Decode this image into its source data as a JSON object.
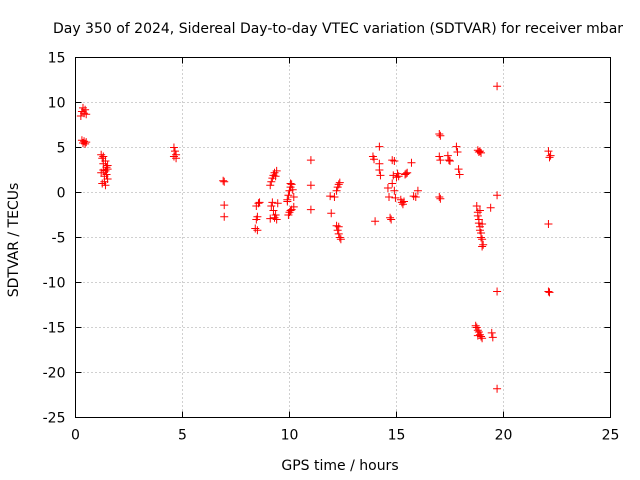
{
  "chart_data": {
    "type": "scatter",
    "title": "Day 350 of 2024, Sidereal Day-to-day VTEC variation (SDTVAR) for receiver mbar",
    "xlabel": "GPS time / hours",
    "ylabel": "SDTVAR / TECUs",
    "xlim": [
      0,
      25
    ],
    "ylim": [
      -25,
      15
    ],
    "xticks": [
      "0",
      "5",
      "10",
      "15",
      "20",
      "25"
    ],
    "yticks": [
      "15",
      "10",
      "5",
      "0",
      "-5",
      "-10",
      "-15",
      "-20",
      "-25"
    ],
    "grid": true,
    "marker": "+",
    "color": "#ff0000",
    "points": [
      [
        0.25,
        8.5
      ],
      [
        0.3,
        9.0
      ],
      [
        0.35,
        9.4
      ],
      [
        0.4,
        8.8
      ],
      [
        0.45,
        9.2
      ],
      [
        0.5,
        8.7
      ],
      [
        0.3,
        5.8
      ],
      [
        0.35,
        5.5
      ],
      [
        0.4,
        5.7
      ],
      [
        0.45,
        5.4
      ],
      [
        0.5,
        5.6
      ],
      [
        1.2,
        4.2
      ],
      [
        1.25,
        3.8
      ],
      [
        1.3,
        3.2
      ],
      [
        1.3,
        2.5
      ],
      [
        1.35,
        1.8
      ],
      [
        1.35,
        1.2
      ],
      [
        1.4,
        0.8
      ],
      [
        1.4,
        3.5
      ],
      [
        1.45,
        2.8
      ],
      [
        1.45,
        2.0
      ],
      [
        1.5,
        3.0
      ],
      [
        1.5,
        1.5
      ],
      [
        1.2,
        2.2
      ],
      [
        1.25,
        1.0
      ],
      [
        1.3,
        4.0
      ],
      [
        1.4,
        2.4
      ],
      [
        1.5,
        2.6
      ],
      [
        4.6,
        5.0
      ],
      [
        4.65,
        4.6
      ],
      [
        4.6,
        4.0
      ],
      [
        4.7,
        3.8
      ],
      [
        4.7,
        4.2
      ],
      [
        6.9,
        1.3
      ],
      [
        6.95,
        1.2
      ],
      [
        6.95,
        -1.4
      ],
      [
        6.95,
        -2.7
      ],
      [
        8.4,
        -4.0
      ],
      [
        8.45,
        -3.0
      ],
      [
        8.5,
        -2.7
      ],
      [
        8.55,
        -1.2
      ],
      [
        8.45,
        -1.5
      ],
      [
        8.5,
        -4.2
      ],
      [
        8.6,
        -1.1
      ],
      [
        9.1,
        0.8
      ],
      [
        9.15,
        1.2
      ],
      [
        9.2,
        1.6
      ],
      [
        9.25,
        1.9
      ],
      [
        9.3,
        2.2
      ],
      [
        9.35,
        1.8
      ],
      [
        9.4,
        2.4
      ],
      [
        9.15,
        -1.5
      ],
      [
        9.2,
        -1.1
      ],
      [
        9.25,
        -2.0
      ],
      [
        9.3,
        -2.8
      ],
      [
        9.35,
        -2.5
      ],
      [
        9.4,
        -3.0
      ],
      [
        9.45,
        -1.2
      ],
      [
        9.1,
        -2.9
      ],
      [
        9.9,
        -0.8
      ],
      [
        9.95,
        -0.3
      ],
      [
        10.0,
        0.2
      ],
      [
        10.05,
        0.6
      ],
      [
        10.1,
        0.9
      ],
      [
        10.15,
        0.3
      ],
      [
        10.2,
        -0.5
      ],
      [
        9.95,
        -2.5
      ],
      [
        10.0,
        -2.2
      ],
      [
        10.05,
        -2.0
      ],
      [
        10.1,
        -1.9
      ],
      [
        10.2,
        -1.6
      ],
      [
        9.9,
        -1.0
      ],
      [
        10.05,
        1.0
      ],
      [
        11.0,
        3.6
      ],
      [
        11.0,
        0.8
      ],
      [
        11.0,
        -1.9
      ],
      [
        11.9,
        -0.4
      ],
      [
        11.95,
        -2.3
      ],
      [
        12.1,
        -0.5
      ],
      [
        12.2,
        0.2
      ],
      [
        12.25,
        0.6
      ],
      [
        12.3,
        0.9
      ],
      [
        12.35,
        1.1
      ],
      [
        12.2,
        -3.7
      ],
      [
        12.25,
        -4.2
      ],
      [
        12.3,
        -4.6
      ],
      [
        12.35,
        -5.0
      ],
      [
        12.4,
        -5.2
      ],
      [
        12.3,
        -3.8
      ],
      [
        13.9,
        4.0
      ],
      [
        13.95,
        3.7
      ],
      [
        14.0,
        -3.2
      ],
      [
        14.2,
        3.2
      ],
      [
        14.2,
        5.1
      ],
      [
        14.2,
        2.5
      ],
      [
        14.25,
        1.9
      ],
      [
        14.6,
        0.5
      ],
      [
        14.65,
        -0.5
      ],
      [
        14.7,
        -2.8
      ],
      [
        14.75,
        -3.0
      ],
      [
        14.8,
        3.6
      ],
      [
        14.85,
        1.9
      ],
      [
        14.9,
        3.5
      ],
      [
        14.8,
        1.0
      ],
      [
        14.9,
        0.2
      ],
      [
        14.95,
        -0.6
      ],
      [
        15.0,
        1.7
      ],
      [
        15.05,
        2.1
      ],
      [
        15.1,
        1.8
      ],
      [
        15.2,
        -0.8
      ],
      [
        15.25,
        -1.1
      ],
      [
        15.3,
        -1.3
      ],
      [
        15.35,
        -1.0
      ],
      [
        15.4,
        2.0
      ],
      [
        15.45,
        2.1
      ],
      [
        15.5,
        2.2
      ],
      [
        15.7,
        3.3
      ],
      [
        15.8,
        -0.4
      ],
      [
        15.9,
        -0.5
      ],
      [
        16.0,
        0.2
      ],
      [
        17.0,
        6.5
      ],
      [
        17.05,
        6.3
      ],
      [
        17.0,
        4.0
      ],
      [
        17.05,
        3.6
      ],
      [
        17.0,
        -0.5
      ],
      [
        17.05,
        -0.7
      ],
      [
        17.4,
        4.1
      ],
      [
        17.45,
        3.6
      ],
      [
        17.5,
        3.5
      ],
      [
        17.8,
        5.1
      ],
      [
        17.85,
        4.5
      ],
      [
        17.9,
        2.6
      ],
      [
        17.95,
        2.0
      ],
      [
        18.8,
        4.7
      ],
      [
        18.85,
        4.5
      ],
      [
        18.9,
        4.6
      ],
      [
        18.95,
        4.4
      ],
      [
        18.75,
        -1.5
      ],
      [
        18.8,
        -2.2
      ],
      [
        18.85,
        -3.0
      ],
      [
        18.9,
        -3.8
      ],
      [
        18.95,
        -4.5
      ],
      [
        19.0,
        -5.2
      ],
      [
        19.05,
        -5.8
      ],
      [
        18.8,
        -2.6
      ],
      [
        18.85,
        -3.4
      ],
      [
        18.9,
        -4.2
      ],
      [
        18.95,
        -5.0
      ],
      [
        19.0,
        -6.0
      ],
      [
        18.9,
        -2.0
      ],
      [
        19.0,
        -3.5
      ],
      [
        18.7,
        -14.8
      ],
      [
        18.75,
        -15.0
      ],
      [
        18.8,
        -15.3
      ],
      [
        18.85,
        -15.5
      ],
      [
        18.9,
        -15.8
      ],
      [
        18.95,
        -16.0
      ],
      [
        19.0,
        -16.2
      ],
      [
        18.8,
        -15.9
      ],
      [
        19.4,
        -1.7
      ],
      [
        19.45,
        -15.6
      ],
      [
        19.5,
        -16.1
      ],
      [
        19.7,
        11.8
      ],
      [
        19.7,
        -0.3
      ],
      [
        19.7,
        -11.0
      ],
      [
        19.7,
        -21.8
      ],
      [
        22.1,
        4.6
      ],
      [
        22.15,
        3.9
      ],
      [
        22.2,
        4.1
      ],
      [
        22.1,
        -3.5
      ],
      [
        22.1,
        -11.0
      ],
      [
        22.15,
        -11.1
      ]
    ]
  }
}
